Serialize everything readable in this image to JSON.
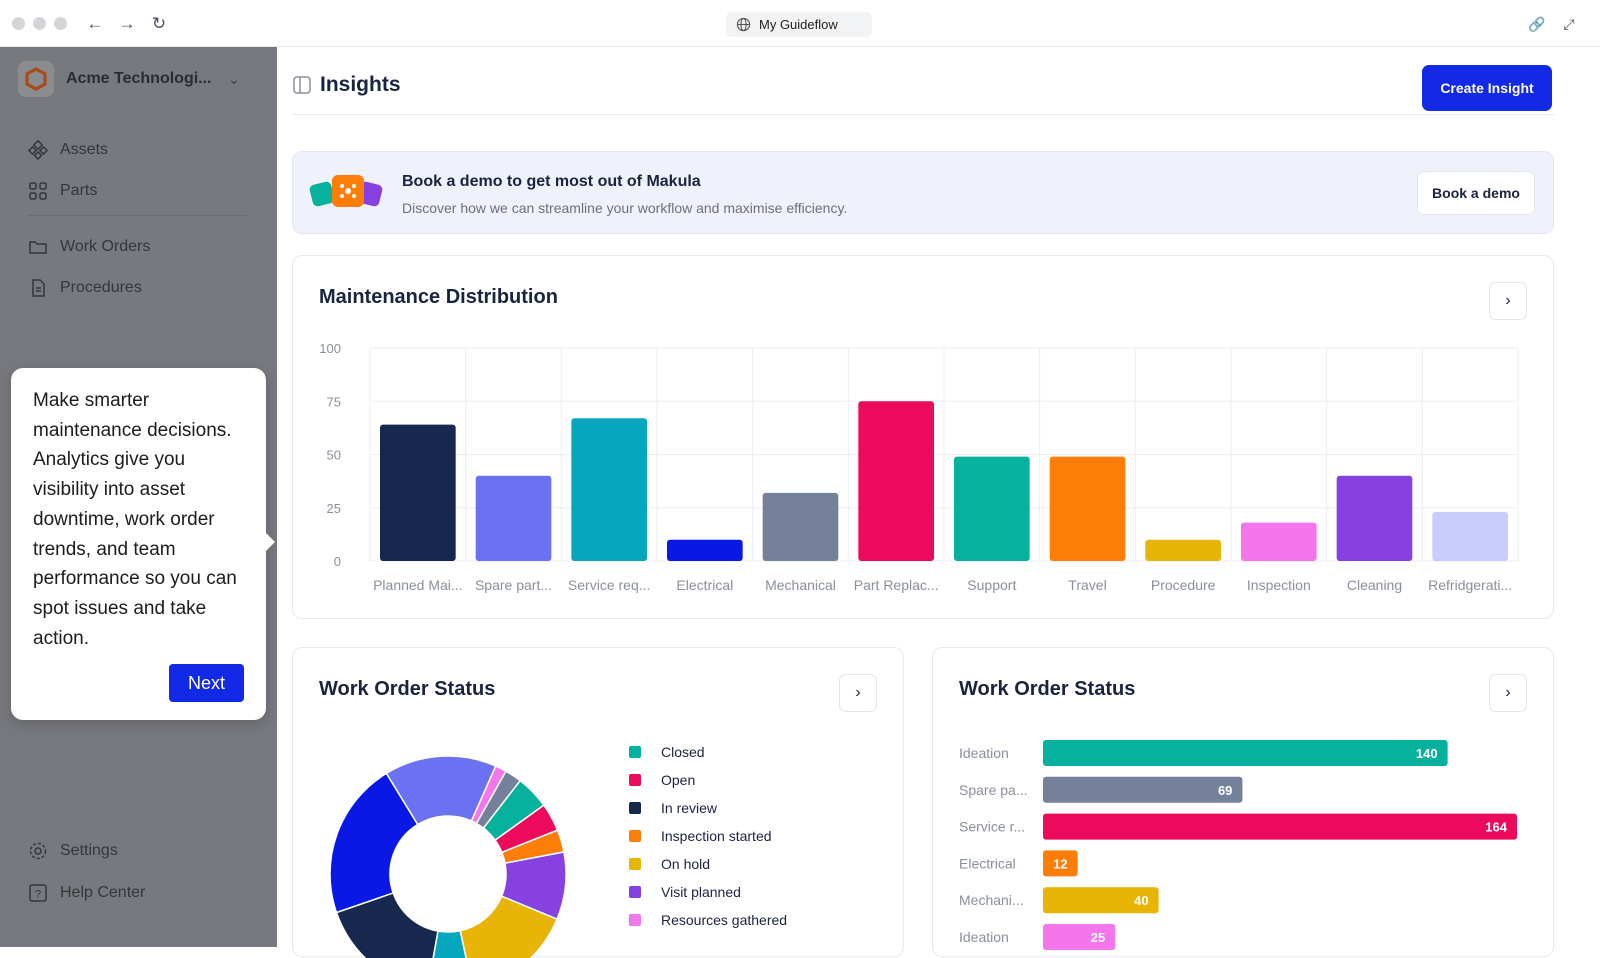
{
  "browser": {
    "url_label": "My Guideflow"
  },
  "sidebar": {
    "org_name": "Acme Technologi...",
    "items": [
      {
        "label": "Assets"
      },
      {
        "label": "Parts"
      },
      {
        "label": "Work Orders"
      },
      {
        "label": "Procedures"
      }
    ],
    "bottom_items": [
      {
        "label": "Settings"
      },
      {
        "label": "Help Center"
      }
    ]
  },
  "tooltip": {
    "text": "Make smarter maintenance decisions. Analytics give you visibility into asset downtime, work order trends, and team performance so you can spot issues and take action.",
    "next_label": "Next"
  },
  "header": {
    "title": "Insights",
    "create_label": "Create Insight"
  },
  "banner": {
    "title": "Book a demo to get most out of Makula",
    "subtitle": "Discover how we can streamline your workflow and maximise efficiency.",
    "button_label": "Book a demo"
  },
  "colors": {
    "accent": "#1229e6"
  },
  "maintenance": {
    "title": "Maintenance Distribution"
  },
  "status_donut": {
    "title": "Work Order Status"
  },
  "status_bars": {
    "title": "Work Order Status"
  },
  "chart_data": [
    {
      "type": "bar",
      "title": "Maintenance Distribution",
      "categories": [
        "Planned Mai...",
        "Spare part...",
        "Service req...",
        "Electrical",
        "Mechanical",
        "Part Replac...",
        "Support",
        "Travel",
        "Procedure",
        "Inspection",
        "Cleaning",
        "Refridgerati..."
      ],
      "values": [
        64,
        40,
        67,
        10,
        32,
        75,
        49,
        49,
        10,
        18,
        40,
        23
      ],
      "colors": [
        "#17284e",
        "#6b72f2",
        "#06a6bf",
        "#0a18e6",
        "#75809a",
        "#ec0a5c",
        "#06b19e",
        "#fd7d09",
        "#e9b408",
        "#f575ec",
        "#8741e0",
        "#c8cdfb"
      ],
      "ylim": [
        0,
        100
      ],
      "yticks": [
        0,
        25,
        50,
        75,
        100
      ]
    },
    {
      "type": "pie",
      "title": "Work Order Status",
      "labels": [
        "Closed",
        "Open",
        "In review",
        "Inspection started",
        "On hold",
        "Visit planned",
        "Resources gathered"
      ],
      "legend_colors": [
        "#06b19e",
        "#ec0a5c",
        "#17284e",
        "#fd7d09",
        "#e9b408",
        "#8741e0",
        "#f575ec"
      ],
      "slices": [
        {
          "value": 20,
          "color": "#6b72f2"
        },
        {
          "value": 2,
          "color": "#f575ec"
        },
        {
          "value": 3,
          "color": "#75809a"
        },
        {
          "value": 6,
          "color": "#06b19e"
        },
        {
          "value": 5,
          "color": "#ec0a5c"
        },
        {
          "value": 4,
          "color": "#fd7d09"
        },
        {
          "value": 12,
          "color": "#8741e0"
        },
        {
          "value": 20,
          "color": "#e9b408"
        },
        {
          "value": 8,
          "color": "#06a6bf"
        },
        {
          "value": 22,
          "color": "#17284e"
        },
        {
          "value": 28,
          "color": "#0a18e6"
        }
      ]
    },
    {
      "type": "bar",
      "orientation": "horizontal",
      "title": "Work Order Status",
      "categories": [
        "Ideation",
        "Spare pa...",
        "Service r...",
        "Electrical",
        "Mechani...",
        "Ideation"
      ],
      "values": [
        140,
        69,
        164,
        12,
        40,
        25
      ],
      "value_labels": [
        "140",
        "69",
        "164",
        "12",
        "40",
        "25"
      ],
      "colors": [
        "#06b19e",
        "#75809a",
        "#ec0a5c",
        "#fd7d09",
        "#e9b408",
        "#f575ec"
      ],
      "xlim": [
        0,
        164
      ]
    }
  ]
}
